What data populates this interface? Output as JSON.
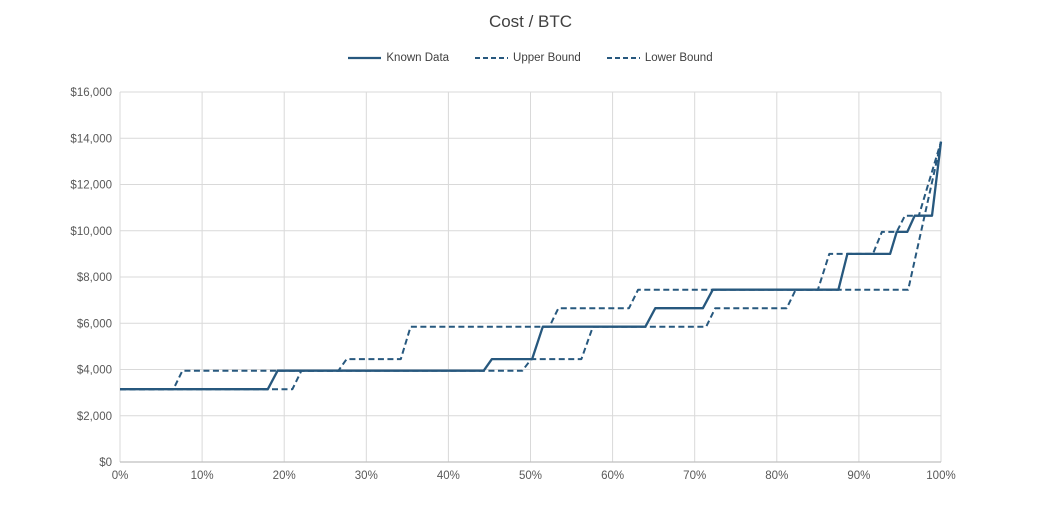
{
  "colors": {
    "line": "#27587e",
    "grid": "#d9d9d9",
    "axis_line": "#bfbfbf",
    "tick_text": "#595959",
    "title_text": "#404040",
    "background": "#ffffff"
  },
  "chart_data": {
    "type": "line",
    "title": "Cost / BTC",
    "xlabel": "",
    "ylabel": "",
    "xlim": [
      0,
      100
    ],
    "ylim": [
      0,
      16000
    ],
    "grid": true,
    "legend_position": "top",
    "x_ticks": [
      {
        "value": 0,
        "label": "0%"
      },
      {
        "value": 10,
        "label": "10%"
      },
      {
        "value": 20,
        "label": "20%"
      },
      {
        "value": 30,
        "label": "30%"
      },
      {
        "value": 40,
        "label": "40%"
      },
      {
        "value": 50,
        "label": "50%"
      },
      {
        "value": 60,
        "label": "60%"
      },
      {
        "value": 70,
        "label": "70%"
      },
      {
        "value": 80,
        "label": "80%"
      },
      {
        "value": 90,
        "label": "90%"
      },
      {
        "value": 100,
        "label": "100%"
      }
    ],
    "y_ticks": [
      {
        "value": 0,
        "label": "$0"
      },
      {
        "value": 2000,
        "label": "$2,000"
      },
      {
        "value": 4000,
        "label": "$4,000"
      },
      {
        "value": 6000,
        "label": "$6,000"
      },
      {
        "value": 8000,
        "label": "$8,000"
      },
      {
        "value": 10000,
        "label": "$10,000"
      },
      {
        "value": 12000,
        "label": "$12,000"
      },
      {
        "value": 14000,
        "label": "$14,000"
      },
      {
        "value": 16000,
        "label": "$16,000"
      }
    ],
    "series": [
      {
        "name": "Known Data",
        "style": "solid",
        "points": [
          [
            0,
            3150
          ],
          [
            18,
            3150
          ],
          [
            19.2,
            3950
          ],
          [
            44.3,
            3950
          ],
          [
            45.3,
            4450
          ],
          [
            50.2,
            4450
          ],
          [
            51.5,
            5850
          ],
          [
            64,
            5850
          ],
          [
            65.2,
            6650
          ],
          [
            71,
            6650
          ],
          [
            72.2,
            7450
          ],
          [
            87.5,
            7450
          ],
          [
            88.6,
            9000
          ],
          [
            93.8,
            9000
          ],
          [
            94.6,
            9950
          ],
          [
            95.9,
            9950
          ],
          [
            96.8,
            10650
          ],
          [
            98.9,
            10650
          ],
          [
            100,
            13850
          ]
        ]
      },
      {
        "name": "Upper Bound",
        "style": "dashed",
        "points": [
          [
            0,
            3150
          ],
          [
            6.5,
            3150
          ],
          [
            7.6,
            3950
          ],
          [
            26.6,
            3950
          ],
          [
            27.6,
            4450
          ],
          [
            34.2,
            4450
          ],
          [
            35.4,
            5850
          ],
          [
            52.3,
            5850
          ],
          [
            53.4,
            6650
          ],
          [
            62,
            6650
          ],
          [
            63.1,
            7450
          ],
          [
            85,
            7450
          ],
          [
            86.4,
            9000
          ],
          [
            91.7,
            9000
          ],
          [
            92.8,
            9950
          ],
          [
            94.6,
            9950
          ],
          [
            95.6,
            10650
          ],
          [
            97.3,
            10650
          ],
          [
            100,
            13850
          ]
        ]
      },
      {
        "name": "Lower Bound",
        "style": "dashed",
        "points": [
          [
            0,
            3150
          ],
          [
            21,
            3150
          ],
          [
            22.1,
            3950
          ],
          [
            49,
            3950
          ],
          [
            50.1,
            4450
          ],
          [
            56.2,
            4450
          ],
          [
            57.6,
            5850
          ],
          [
            71.4,
            5850
          ],
          [
            72.5,
            6650
          ],
          [
            81.2,
            6650
          ],
          [
            82.3,
            7450
          ],
          [
            96,
            7450
          ],
          [
            100,
            13850
          ]
        ]
      }
    ]
  }
}
